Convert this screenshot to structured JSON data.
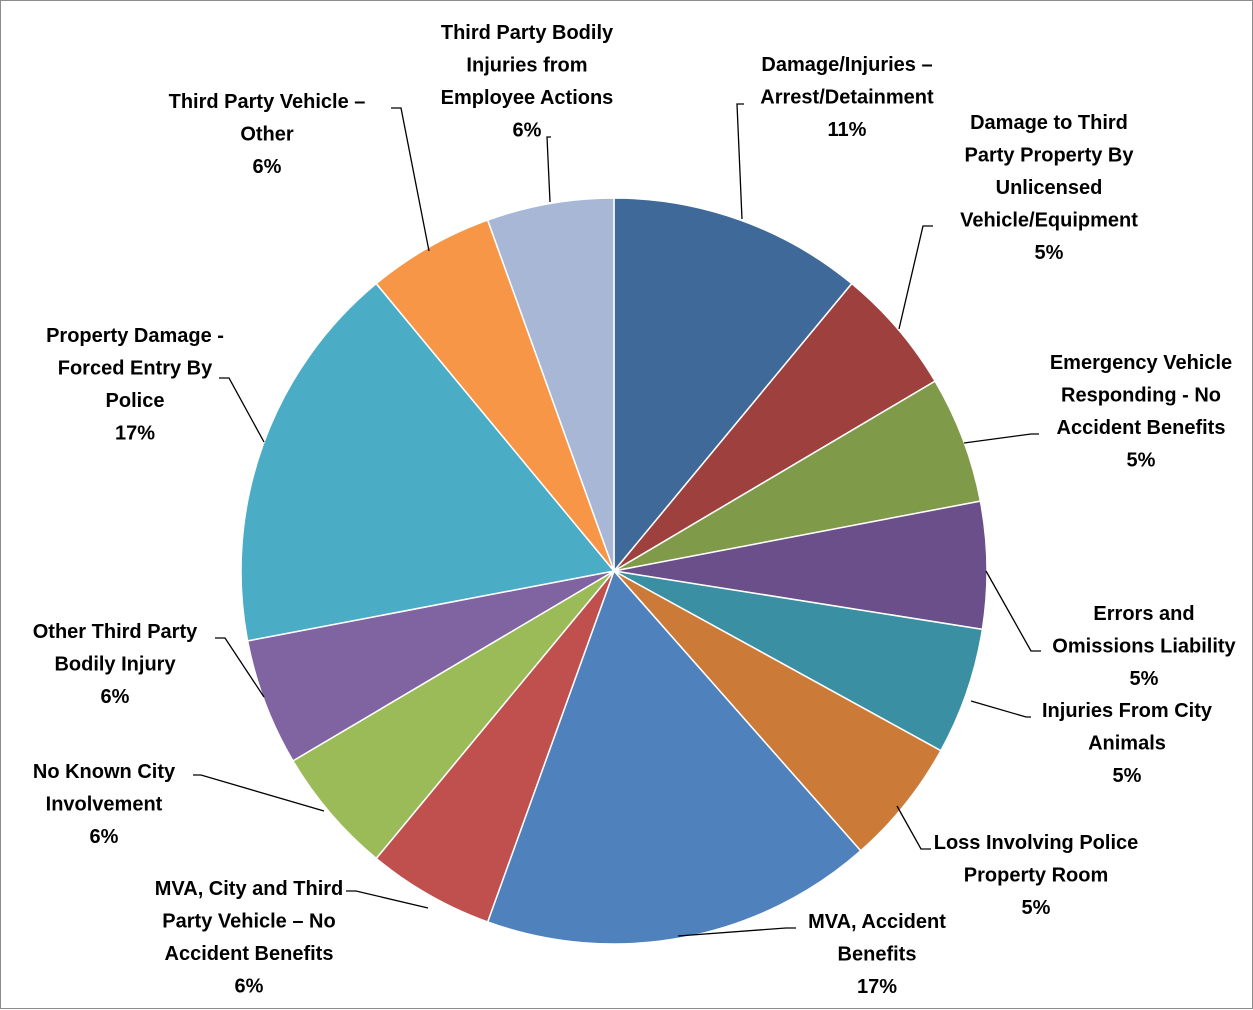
{
  "chart_data": {
    "type": "pie",
    "slices": [
      {
        "label": "Damage/Injuries – Arrest/Detainment",
        "pct_label": "11%",
        "value": 11,
        "color": "#3F6999"
      },
      {
        "label": "Damage to Third Party Property By Unlicensed Vehicle/Equipment",
        "pct_label": "5%",
        "value": 5.5,
        "color": "#9D403E"
      },
      {
        "label": "Emergency Vehicle Responding - No Accident Benefits",
        "pct_label": "5%",
        "value": 5.5,
        "color": "#7F9A48"
      },
      {
        "label": "Errors and Omissions Liability",
        "pct_label": "5%",
        "value": 5.5,
        "color": "#6A4F8A"
      },
      {
        "label": "Injuries From City Animals",
        "pct_label": "5%",
        "value": 5.5,
        "color": "#3A8FA3"
      },
      {
        "label": "Loss Involving Police Property Room",
        "pct_label": "5%",
        "value": 5.5,
        "color": "#CC7A37"
      },
      {
        "label": "MVA, Accident Benefits",
        "pct_label": "17%",
        "value": 17,
        "color": "#4F81BD"
      },
      {
        "label": "MVA, City and Third Party Vehicle – No Accident Benefits",
        "pct_label": "6%",
        "value": 5.5,
        "color": "#C0504D"
      },
      {
        "label": "No Known City Involvement",
        "pct_label": "6%",
        "value": 5.5,
        "color": "#9BBB59"
      },
      {
        "label": "Other Third Party Bodily Injury",
        "pct_label": "6%",
        "value": 5.5,
        "color": "#8064A2"
      },
      {
        "label": "Property Damage - Forced Entry By Police",
        "pct_label": "17%",
        "value": 17,
        "color": "#4BACC6"
      },
      {
        "label": "Third Party Vehicle – Other",
        "pct_label": "6%",
        "value": 5.5,
        "color": "#F79646"
      },
      {
        "label": "Third Party Bodily Injuries from Employee Actions",
        "pct_label": "6%",
        "value": 5.5,
        "color": "#A9B7D6"
      }
    ]
  }
}
